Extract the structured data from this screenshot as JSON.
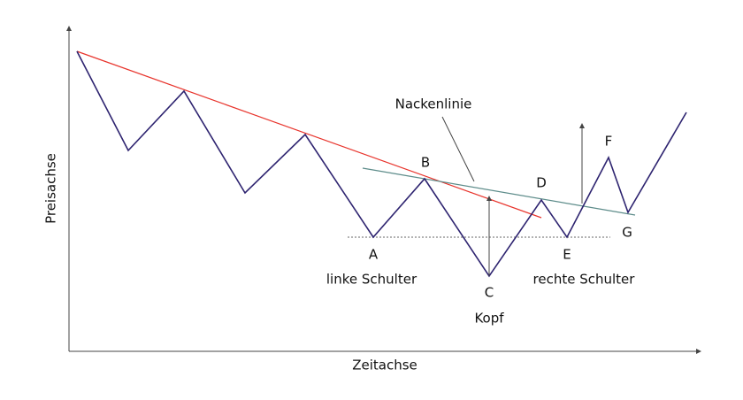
{
  "axes": {
    "x_label": "Zeitachse",
    "y_label": "Preisachse"
  },
  "neckline_label": "Nackenlinie",
  "points": [
    {
      "label": "A"
    },
    {
      "label": "B"
    },
    {
      "label": "C"
    },
    {
      "label": "D"
    },
    {
      "label": "E"
    },
    {
      "label": "F"
    },
    {
      "label": "G"
    }
  ],
  "captions": {
    "left_shoulder": "linke Schulter",
    "head": "Kopf",
    "right_shoulder": "rechte Schulter"
  }
}
